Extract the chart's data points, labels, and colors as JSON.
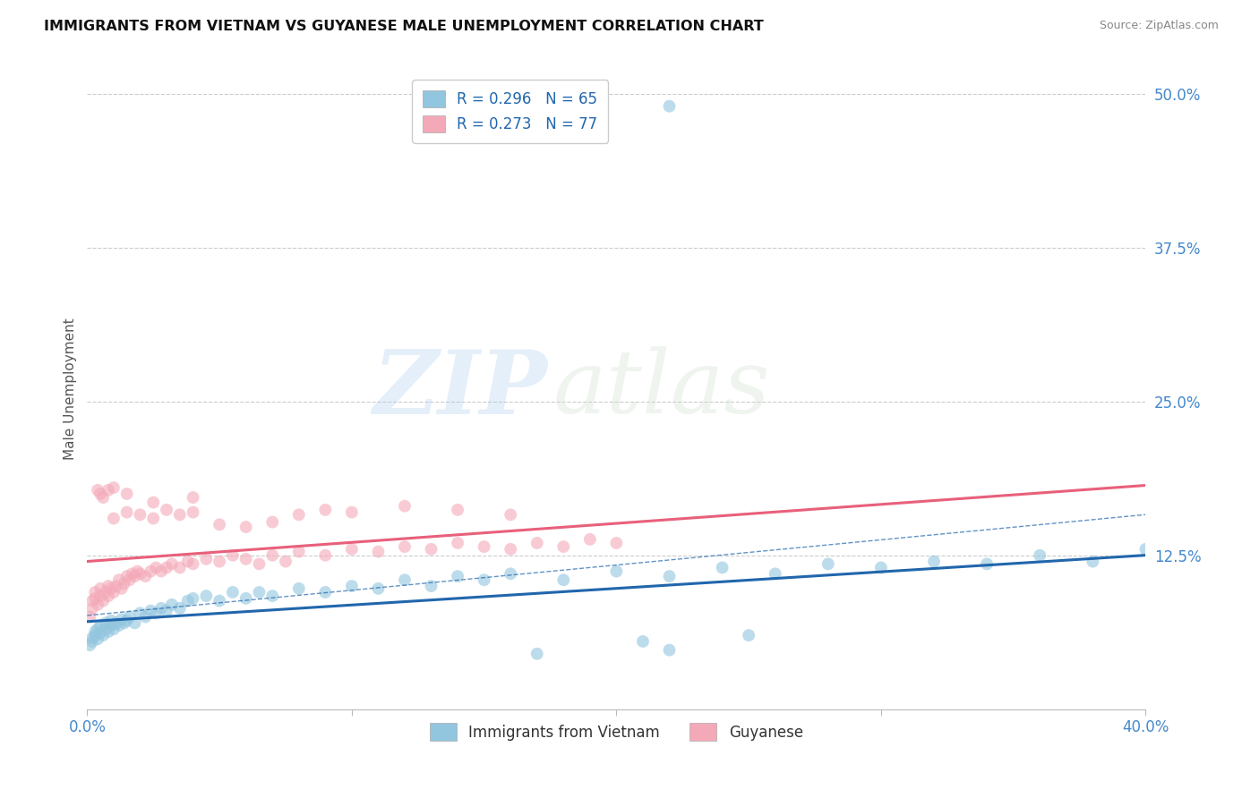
{
  "title": "IMMIGRANTS FROM VIETNAM VS GUYANESE MALE UNEMPLOYMENT CORRELATION CHART",
  "source": "Source: ZipAtlas.com",
  "ylabel": "Male Unemployment",
  "xlim": [
    0.0,
    0.4
  ],
  "ylim": [
    0.0,
    0.52
  ],
  "yticks": [
    0.0,
    0.125,
    0.25,
    0.375,
    0.5
  ],
  "ytick_labels": [
    "",
    "12.5%",
    "25.0%",
    "37.5%",
    "50.0%"
  ],
  "xticks": [
    0.0,
    0.1,
    0.2,
    0.3,
    0.4
  ],
  "xtick_labels": [
    "0.0%",
    "",
    "",
    "",
    "40.0%"
  ],
  "background_color": "#ffffff",
  "watermark_zip": "ZIP",
  "watermark_atlas": "atlas",
  "legend_r1": "R = 0.296   N = 65",
  "legend_r2": "R = 0.273   N = 77",
  "color_blue": "#92c5de",
  "color_pink": "#f4a9b8",
  "trendline_blue": "#2166ac",
  "trendline_pink": "#e8607a",
  "grid_color": "#cccccc",
  "tick_color": "#4488cc",
  "viet_x": [
    0.001,
    0.002,
    0.002,
    0.003,
    0.003,
    0.004,
    0.004,
    0.005,
    0.005,
    0.006,
    0.007,
    0.007,
    0.008,
    0.009,
    0.009,
    0.01,
    0.011,
    0.012,
    0.013,
    0.014,
    0.015,
    0.016,
    0.018,
    0.02,
    0.022,
    0.024,
    0.026,
    0.028,
    0.03,
    0.032,
    0.035,
    0.038,
    0.04,
    0.045,
    0.05,
    0.055,
    0.06,
    0.065,
    0.07,
    0.08,
    0.09,
    0.1,
    0.11,
    0.12,
    0.13,
    0.14,
    0.15,
    0.16,
    0.18,
    0.2,
    0.22,
    0.24,
    0.26,
    0.28,
    0.3,
    0.32,
    0.34,
    0.36,
    0.38,
    0.4,
    0.21,
    0.25,
    0.17,
    0.22,
    0.22
  ],
  "viet_y": [
    0.052,
    0.058,
    0.055,
    0.06,
    0.063,
    0.057,
    0.065,
    0.062,
    0.068,
    0.06,
    0.065,
    0.07,
    0.063,
    0.068,
    0.072,
    0.065,
    0.07,
    0.068,
    0.073,
    0.07,
    0.072,
    0.075,
    0.07,
    0.078,
    0.075,
    0.08,
    0.078,
    0.082,
    0.08,
    0.085,
    0.082,
    0.088,
    0.09,
    0.092,
    0.088,
    0.095,
    0.09,
    0.095,
    0.092,
    0.098,
    0.095,
    0.1,
    0.098,
    0.105,
    0.1,
    0.108,
    0.105,
    0.11,
    0.105,
    0.112,
    0.108,
    0.115,
    0.11,
    0.118,
    0.115,
    0.12,
    0.118,
    0.125,
    0.12,
    0.13,
    0.055,
    0.06,
    0.045,
    0.048,
    0.49
  ],
  "guy_x": [
    0.001,
    0.002,
    0.002,
    0.003,
    0.003,
    0.004,
    0.005,
    0.005,
    0.006,
    0.007,
    0.008,
    0.008,
    0.009,
    0.01,
    0.011,
    0.012,
    0.013,
    0.014,
    0.015,
    0.016,
    0.017,
    0.018,
    0.019,
    0.02,
    0.022,
    0.024,
    0.026,
    0.028,
    0.03,
    0.032,
    0.035,
    0.038,
    0.04,
    0.045,
    0.05,
    0.055,
    0.06,
    0.065,
    0.07,
    0.075,
    0.08,
    0.09,
    0.1,
    0.11,
    0.12,
    0.13,
    0.14,
    0.15,
    0.16,
    0.17,
    0.18,
    0.19,
    0.2,
    0.01,
    0.015,
    0.02,
    0.025,
    0.03,
    0.035,
    0.04,
    0.05,
    0.06,
    0.07,
    0.08,
    0.09,
    0.1,
    0.12,
    0.14,
    0.16,
    0.04,
    0.025,
    0.015,
    0.01,
    0.008,
    0.006,
    0.005,
    0.004
  ],
  "guy_y": [
    0.075,
    0.082,
    0.088,
    0.09,
    0.095,
    0.085,
    0.092,
    0.098,
    0.088,
    0.095,
    0.1,
    0.092,
    0.098,
    0.095,
    0.1,
    0.105,
    0.098,
    0.102,
    0.108,
    0.105,
    0.11,
    0.108,
    0.112,
    0.11,
    0.108,
    0.112,
    0.115,
    0.112,
    0.115,
    0.118,
    0.115,
    0.12,
    0.118,
    0.122,
    0.12,
    0.125,
    0.122,
    0.118,
    0.125,
    0.12,
    0.128,
    0.125,
    0.13,
    0.128,
    0.132,
    0.13,
    0.135,
    0.132,
    0.13,
    0.135,
    0.132,
    0.138,
    0.135,
    0.155,
    0.16,
    0.158,
    0.155,
    0.162,
    0.158,
    0.16,
    0.15,
    0.148,
    0.152,
    0.158,
    0.162,
    0.16,
    0.165,
    0.162,
    0.158,
    0.172,
    0.168,
    0.175,
    0.18,
    0.178,
    0.172,
    0.175,
    0.178
  ]
}
